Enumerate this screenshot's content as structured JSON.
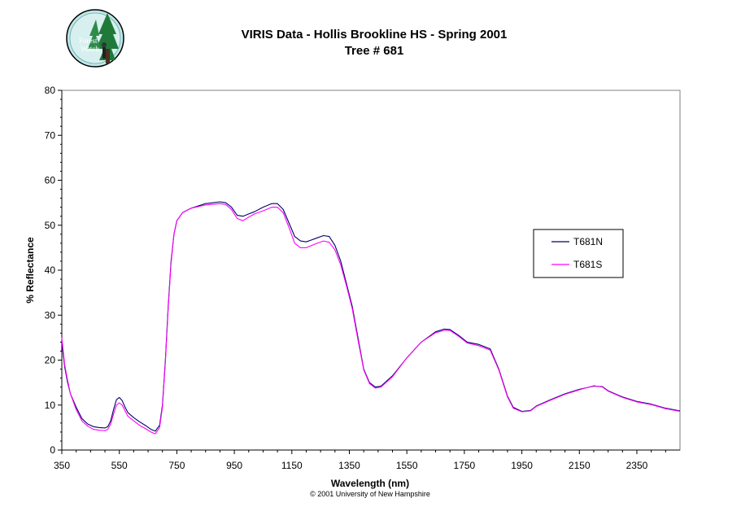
{
  "logo": {
    "text_line1": "Forest",
    "text_line2": "Watch"
  },
  "footer": {
    "copyright": "© 2001 University of New Hampshire"
  },
  "chart_data": {
    "type": "line",
    "title": "VIRIS Data - Hollis Brookline HS - Spring 2001",
    "subtitle": "Tree # 681",
    "xlabel": "Wavelength (nm)",
    "ylabel": "% Reflectance",
    "xlim": [
      350,
      2500
    ],
    "ylim": [
      0,
      80
    ],
    "x_ticks": [
      350,
      550,
      750,
      950,
      1150,
      1350,
      1550,
      1750,
      1950,
      2150,
      2350
    ],
    "y_ticks": [
      0,
      10,
      20,
      30,
      40,
      50,
      60,
      70,
      80
    ],
    "grid": false,
    "legend_position": "right",
    "series": [
      {
        "name": "T681N",
        "color": "#000066",
        "points": [
          [
            350,
            24
          ],
          [
            360,
            18.5
          ],
          [
            370,
            15
          ],
          [
            380,
            12.5
          ],
          [
            400,
            9.5
          ],
          [
            420,
            7
          ],
          [
            440,
            5.8
          ],
          [
            460,
            5.2
          ],
          [
            480,
            5
          ],
          [
            500,
            4.9
          ],
          [
            510,
            5.2
          ],
          [
            520,
            6.5
          ],
          [
            530,
            9
          ],
          [
            540,
            11.2
          ],
          [
            550,
            11.7
          ],
          [
            560,
            11
          ],
          [
            570,
            9.5
          ],
          [
            580,
            8.3
          ],
          [
            600,
            7.2
          ],
          [
            620,
            6.3
          ],
          [
            640,
            5.5
          ],
          [
            660,
            4.6
          ],
          [
            675,
            4.2
          ],
          [
            690,
            5.5
          ],
          [
            700,
            10
          ],
          [
            710,
            20
          ],
          [
            720,
            32
          ],
          [
            730,
            42
          ],
          [
            740,
            48
          ],
          [
            750,
            51
          ],
          [
            770,
            52.8
          ],
          [
            800,
            53.8
          ],
          [
            850,
            54.8
          ],
          [
            900,
            55.2
          ],
          [
            920,
            55
          ],
          [
            940,
            54
          ],
          [
            960,
            52.2
          ],
          [
            980,
            52
          ],
          [
            1000,
            52.5
          ],
          [
            1020,
            53
          ],
          [
            1050,
            54
          ],
          [
            1080,
            54.8
          ],
          [
            1100,
            54.8
          ],
          [
            1120,
            53.5
          ],
          [
            1140,
            50.5
          ],
          [
            1160,
            47.5
          ],
          [
            1180,
            46.5
          ],
          [
            1200,
            46.3
          ],
          [
            1230,
            47
          ],
          [
            1260,
            47.7
          ],
          [
            1280,
            47.5
          ],
          [
            1300,
            45.5
          ],
          [
            1320,
            42
          ],
          [
            1340,
            37
          ],
          [
            1360,
            32
          ],
          [
            1380,
            25
          ],
          [
            1400,
            18
          ],
          [
            1420,
            15
          ],
          [
            1440,
            14
          ],
          [
            1460,
            14.2
          ],
          [
            1500,
            16.5
          ],
          [
            1550,
            20.5
          ],
          [
            1600,
            24
          ],
          [
            1650,
            26.3
          ],
          [
            1680,
            26.9
          ],
          [
            1700,
            26.8
          ],
          [
            1730,
            25.5
          ],
          [
            1760,
            24
          ],
          [
            1800,
            23.5
          ],
          [
            1840,
            22.5
          ],
          [
            1870,
            18
          ],
          [
            1900,
            12
          ],
          [
            1920,
            9.5
          ],
          [
            1950,
            8.6
          ],
          [
            1980,
            8.8
          ],
          [
            2000,
            9.8
          ],
          [
            2050,
            11.2
          ],
          [
            2100,
            12.5
          ],
          [
            2150,
            13.5
          ],
          [
            2200,
            14.2
          ],
          [
            2230,
            14.1
          ],
          [
            2250,
            13.2
          ],
          [
            2300,
            11.8
          ],
          [
            2350,
            10.8
          ],
          [
            2400,
            10.2
          ],
          [
            2450,
            9.3
          ],
          [
            2500,
            8.7
          ]
        ]
      },
      {
        "name": "T681S",
        "color": "#ff00ff",
        "points": [
          [
            350,
            25
          ],
          [
            360,
            19
          ],
          [
            370,
            15.5
          ],
          [
            380,
            12.5
          ],
          [
            400,
            9
          ],
          [
            420,
            6.5
          ],
          [
            440,
            5.3
          ],
          [
            460,
            4.6
          ],
          [
            480,
            4.4
          ],
          [
            500,
            4.3
          ],
          [
            510,
            4.6
          ],
          [
            520,
            5.8
          ],
          [
            530,
            8
          ],
          [
            540,
            10
          ],
          [
            550,
            10.5
          ],
          [
            560,
            10
          ],
          [
            570,
            8.7
          ],
          [
            580,
            7.5
          ],
          [
            600,
            6.5
          ],
          [
            620,
            5.5
          ],
          [
            640,
            4.8
          ],
          [
            660,
            4
          ],
          [
            675,
            3.6
          ],
          [
            690,
            5
          ],
          [
            700,
            9.5
          ],
          [
            710,
            19.5
          ],
          [
            720,
            31.5
          ],
          [
            730,
            41.5
          ],
          [
            740,
            48
          ],
          [
            750,
            51
          ],
          [
            770,
            52.8
          ],
          [
            800,
            53.8
          ],
          [
            850,
            54.5
          ],
          [
            900,
            54.8
          ],
          [
            920,
            54.6
          ],
          [
            940,
            53.5
          ],
          [
            960,
            51.5
          ],
          [
            980,
            51
          ],
          [
            1000,
            51.8
          ],
          [
            1020,
            52.5
          ],
          [
            1050,
            53.2
          ],
          [
            1080,
            54
          ],
          [
            1100,
            54
          ],
          [
            1120,
            52.8
          ],
          [
            1140,
            49.5
          ],
          [
            1160,
            46
          ],
          [
            1180,
            45
          ],
          [
            1200,
            45
          ],
          [
            1230,
            45.8
          ],
          [
            1260,
            46.5
          ],
          [
            1280,
            46.2
          ],
          [
            1300,
            44.5
          ],
          [
            1320,
            41.2
          ],
          [
            1340,
            36.5
          ],
          [
            1360,
            31.5
          ],
          [
            1380,
            24.5
          ],
          [
            1400,
            17.8
          ],
          [
            1420,
            14.8
          ],
          [
            1440,
            13.8
          ],
          [
            1460,
            14
          ],
          [
            1500,
            16.3
          ],
          [
            1550,
            20.5
          ],
          [
            1600,
            24
          ],
          [
            1650,
            26.1
          ],
          [
            1680,
            26.6
          ],
          [
            1700,
            26.6
          ],
          [
            1730,
            25.3
          ],
          [
            1760,
            23.8
          ],
          [
            1800,
            23.2
          ],
          [
            1840,
            22.2
          ],
          [
            1870,
            17.8
          ],
          [
            1900,
            11.8
          ],
          [
            1920,
            9.3
          ],
          [
            1950,
            8.5
          ],
          [
            1980,
            8.7
          ],
          [
            2000,
            9.7
          ],
          [
            2050,
            11.1
          ],
          [
            2100,
            12.4
          ],
          [
            2150,
            13.4
          ],
          [
            2200,
            14.3
          ],
          [
            2230,
            14
          ],
          [
            2250,
            13.1
          ],
          [
            2300,
            11.7
          ],
          [
            2350,
            10.7
          ],
          [
            2400,
            10.1
          ],
          [
            2450,
            9.2
          ],
          [
            2500,
            8.6
          ]
        ]
      }
    ]
  }
}
